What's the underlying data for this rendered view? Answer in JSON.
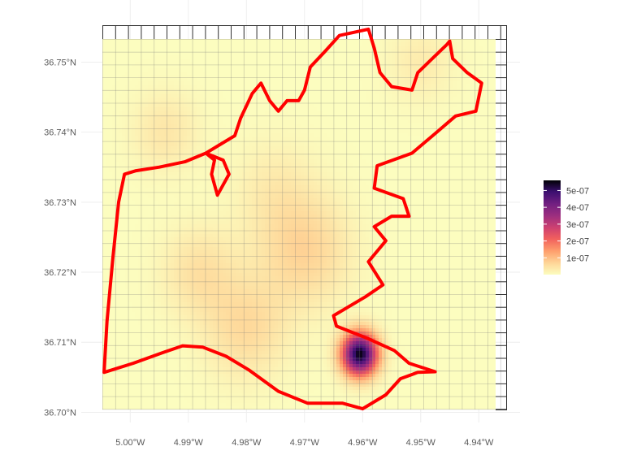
{
  "chart_data": {
    "type": "heatmap",
    "xlabel": "",
    "ylabel": "",
    "x_ticks": [
      "5.00°W",
      "4.99°W",
      "4.98°W",
      "4.97°W",
      "4.96°W",
      "4.95°W",
      "4.94°W"
    ],
    "y_ticks": [
      "36.75°N",
      "36.74°N",
      "36.73°N",
      "36.72°N",
      "36.71°N",
      "36.70°N"
    ],
    "x_tick_values": [
      -5.0,
      -4.99,
      -4.98,
      -4.97,
      -4.96,
      -4.95,
      -4.94
    ],
    "y_tick_values": [
      36.75,
      36.74,
      36.73,
      36.72,
      36.71,
      36.7
    ],
    "xlim": [
      -5.005,
      -4.937
    ],
    "ylim": [
      36.701,
      36.753
    ],
    "grid": true,
    "colorscale": "magma (reversed)",
    "legend": {
      "position": "right",
      "labels": [
        "5e-07",
        "4e-07",
        "3e-07",
        "2e-07",
        "1e-07"
      ],
      "values": [
        5e-07,
        4e-07,
        3e-07,
        2e-07,
        1e-07
      ],
      "min": 0,
      "max": 5.6e-07
    },
    "density_peaks": [
      {
        "lon": -4.9605,
        "lat": 36.7083,
        "value": 5.5e-07
      },
      {
        "lon": -4.97,
        "lat": 36.723,
        "value": 7e-08
      },
      {
        "lon": -4.98,
        "lat": 36.712,
        "value": 6e-08
      },
      {
        "lon": -4.988,
        "lat": 36.72,
        "value": 5e-08
      },
      {
        "lon": -4.994,
        "lat": 36.74,
        "value": 4e-08
      },
      {
        "lon": -4.975,
        "lat": 36.732,
        "value": 3e-08
      },
      {
        "lon": -4.95,
        "lat": 36.75,
        "value": 3e-08
      }
    ],
    "boundary": [
      [
        -5.0045,
        36.7057
      ],
      [
        -4.9995,
        36.707
      ],
      [
        -4.9945,
        36.7085
      ],
      [
        -4.991,
        36.7095
      ],
      [
        -4.9875,
        36.7093
      ],
      [
        -4.9835,
        36.708
      ],
      [
        -4.9795,
        36.706
      ],
      [
        -4.9745,
        36.703
      ],
      [
        -4.9695,
        36.7013
      ],
      [
        -4.9635,
        36.7013
      ],
      [
        -4.96,
        36.7005
      ],
      [
        -4.956,
        36.7025
      ],
      [
        -4.9535,
        36.7048
      ],
      [
        -4.9505,
        36.7057
      ],
      [
        -4.9475,
        36.7058
      ],
      [
        -4.952,
        36.707
      ],
      [
        -4.9545,
        36.7088
      ],
      [
        -4.959,
        36.7105
      ],
      [
        -4.9645,
        36.7123
      ],
      [
        -4.965,
        36.7138
      ],
      [
        -4.9595,
        36.7165
      ],
      [
        -4.9565,
        36.7182
      ],
      [
        -4.959,
        36.7215
      ],
      [
        -4.956,
        36.7245
      ],
      [
        -4.958,
        36.7265
      ],
      [
        -4.955,
        36.728
      ],
      [
        -4.952,
        36.728
      ],
      [
        -4.953,
        36.7305
      ],
      [
        -4.958,
        36.732
      ],
      [
        -4.9575,
        36.7352
      ],
      [
        -4.9515,
        36.737
      ],
      [
        -4.9475,
        36.7398
      ],
      [
        -4.944,
        36.7423
      ],
      [
        -4.9405,
        36.743
      ],
      [
        -4.9395,
        36.747
      ],
      [
        -4.942,
        36.7485
      ],
      [
        -4.9445,
        36.7505
      ],
      [
        -4.945,
        36.753
      ],
      [
        -4.9455,
        36.7525
      ],
      [
        -4.948,
        36.7505
      ],
      [
        -4.9505,
        36.7485
      ],
      [
        -4.9515,
        36.746
      ],
      [
        -4.955,
        36.7465
      ],
      [
        -4.957,
        36.7485
      ],
      [
        -4.958,
        36.752
      ],
      [
        -4.959,
        36.7547
      ],
      [
        -4.964,
        36.7538
      ],
      [
        -4.9665,
        36.7515
      ],
      [
        -4.969,
        36.7493
      ],
      [
        -4.97,
        36.746
      ],
      [
        -4.971,
        36.7445
      ],
      [
        -4.973,
        36.7445
      ],
      [
        -4.9745,
        36.743
      ],
      [
        -4.976,
        36.7445
      ],
      [
        -4.9775,
        36.747
      ],
      [
        -4.979,
        36.7455
      ],
      [
        -4.981,
        36.742
      ],
      [
        -4.982,
        36.7395
      ],
      [
        -4.985,
        36.738
      ],
      [
        -4.987,
        36.737
      ],
      [
        -4.984,
        36.736
      ],
      [
        -4.983,
        36.734
      ],
      [
        -4.985,
        36.731
      ],
      [
        -4.986,
        36.734
      ],
      [
        -4.9855,
        36.736
      ],
      [
        -4.987,
        36.737
      ],
      [
        -4.9905,
        36.7358
      ],
      [
        -4.995,
        36.735
      ],
      [
        -4.999,
        36.7345
      ],
      [
        -5.001,
        36.734
      ],
      [
        -5.002,
        36.73
      ],
      [
        -5.003,
        36.722
      ],
      [
        -5.004,
        36.713
      ],
      [
        -5.0045,
        36.7057
      ]
    ]
  }
}
